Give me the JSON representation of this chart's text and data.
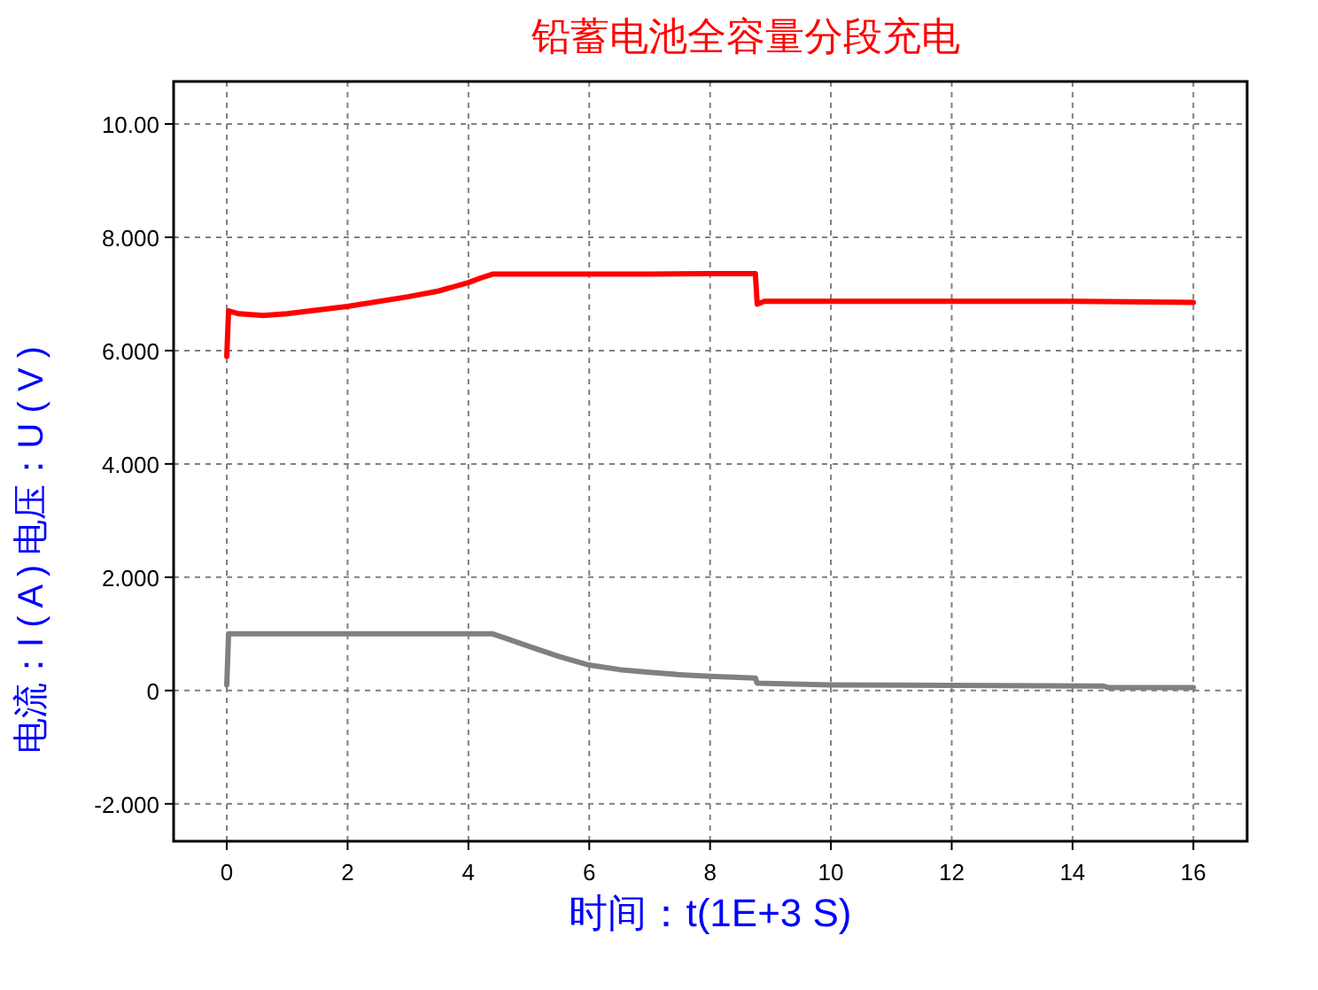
{
  "chart_data": {
    "type": "line",
    "title": "铅蓄电池全容量分段充电",
    "xlabel": "时间：t(1E+3 S)",
    "ylabel": "电流：I ( A )   电压：U ( V )",
    "xlim": [
      -0.88,
      16.89
    ],
    "xticks": [
      0,
      2,
      4,
      6,
      8,
      10,
      12,
      14,
      16
    ],
    "ylim": [
      -2.66,
      10.75
    ],
    "yticks": [
      {
        "value": -2,
        "label": "-2.000"
      },
      0,
      {
        "value": 2,
        "label": "2.000"
      },
      {
        "value": 4,
        "label": "4.000"
      },
      {
        "value": 6,
        "label": "6.000"
      },
      {
        "value": 8,
        "label": "8.000"
      },
      {
        "value": 10,
        "label": "10.00"
      }
    ],
    "grid": true,
    "marker": "none",
    "line_style": "solid",
    "series": [
      {
        "color": "#ff0000",
        "x": [
          0,
          0.03,
          0.2,
          0.6,
          1,
          2,
          3,
          3.5,
          4,
          4.2,
          4.4,
          5,
          6,
          7,
          8,
          8.75,
          8.78,
          8.9,
          10,
          12,
          14,
          16
        ],
        "values": [
          5.9,
          6.7,
          6.65,
          6.62,
          6.65,
          6.78,
          6.95,
          7.05,
          7.2,
          7.28,
          7.35,
          7.35,
          7.35,
          7.35,
          7.36,
          7.36,
          6.82,
          6.87,
          6.87,
          6.87,
          6.87,
          6.85
        ]
      },
      {
        "color": "#808080",
        "x": [
          0,
          0.03,
          1,
          2,
          3,
          4,
          4.4,
          4.6,
          5,
          5.5,
          6,
          6.5,
          7,
          7.5,
          8,
          8.75,
          8.78,
          10,
          12,
          14.5,
          14.6,
          16
        ],
        "values": [
          0.1,
          1.0,
          1.0,
          1.0,
          1.0,
          1.0,
          1.0,
          0.93,
          0.78,
          0.6,
          0.45,
          0.37,
          0.32,
          0.28,
          0.25,
          0.22,
          0.13,
          0.1,
          0.09,
          0.08,
          0.05,
          0.05
        ]
      }
    ]
  }
}
